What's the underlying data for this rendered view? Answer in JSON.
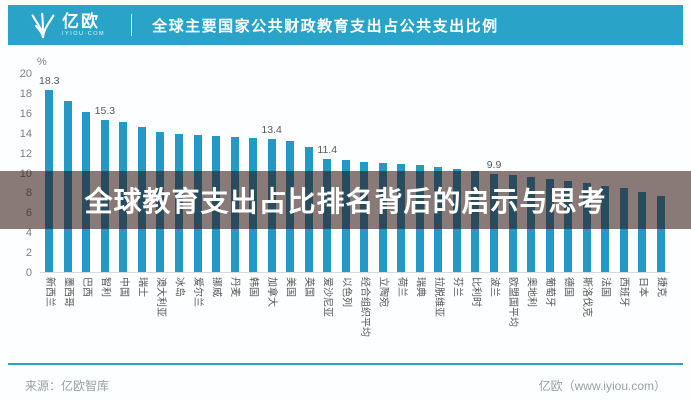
{
  "header": {
    "logo_text": "亿欧",
    "logo_sub": "IYIOU·COM",
    "title": "全球主要国家公共财政教育支出占公共支出比例"
  },
  "banner": {
    "text": "全球教育支出占比排名背后的启示与思考"
  },
  "footer": {
    "source": "来源：亿欧智库",
    "site": "亿欧（www.iyiou.com）"
  },
  "colors": {
    "header_bg": "#2AA3C9",
    "bar": "#2599C5",
    "banner_overlay": "rgba(43,13,8,0.55)",
    "accent_line": "#2AA3C9"
  },
  "chart_data": {
    "type": "bar",
    "title": "全球主要国家公共财政教育支出占公共支出比例",
    "unit": "%",
    "ylim": [
      0,
      20
    ],
    "ytick_step": 2,
    "yticks": [
      "20",
      "18",
      "16",
      "14",
      "12",
      "10",
      "8",
      "6",
      "4",
      "2",
      "0"
    ],
    "grid": false,
    "legend": null,
    "categories": [
      "新西兰",
      "墨西哥",
      "巴西",
      "智利",
      "中国",
      "瑞士",
      "澳大利亚",
      "冰岛",
      "爱尔兰",
      "挪威",
      "丹麦",
      "韩国",
      "加拿大",
      "美国",
      "英国",
      "爱沙尼亚",
      "以色列",
      "经合组织平均",
      "立陶宛",
      "荷兰",
      "瑞典",
      "拉脱维亚",
      "芬兰",
      "比利时",
      "波兰",
      "欧盟国平均",
      "奥地利",
      "葡萄牙",
      "德国",
      "斯洛伐克",
      "法国",
      "西班牙",
      "日本",
      "捷克"
    ],
    "values": [
      18.3,
      17.2,
      16.1,
      15.3,
      15.1,
      14.6,
      14.1,
      13.9,
      13.8,
      13.7,
      13.6,
      13.5,
      13.4,
      13.2,
      12.6,
      11.4,
      11.3,
      11.1,
      11.0,
      10.9,
      10.8,
      10.6,
      10.4,
      10.2,
      9.9,
      9.8,
      9.5,
      9.3,
      9.1,
      8.9,
      8.6,
      8.4,
      8.0,
      7.6
    ],
    "data_labels": {
      "0": "18.3",
      "3": "15.3",
      "12": "13.4",
      "15": "11.4",
      "24": "9.9"
    }
  }
}
